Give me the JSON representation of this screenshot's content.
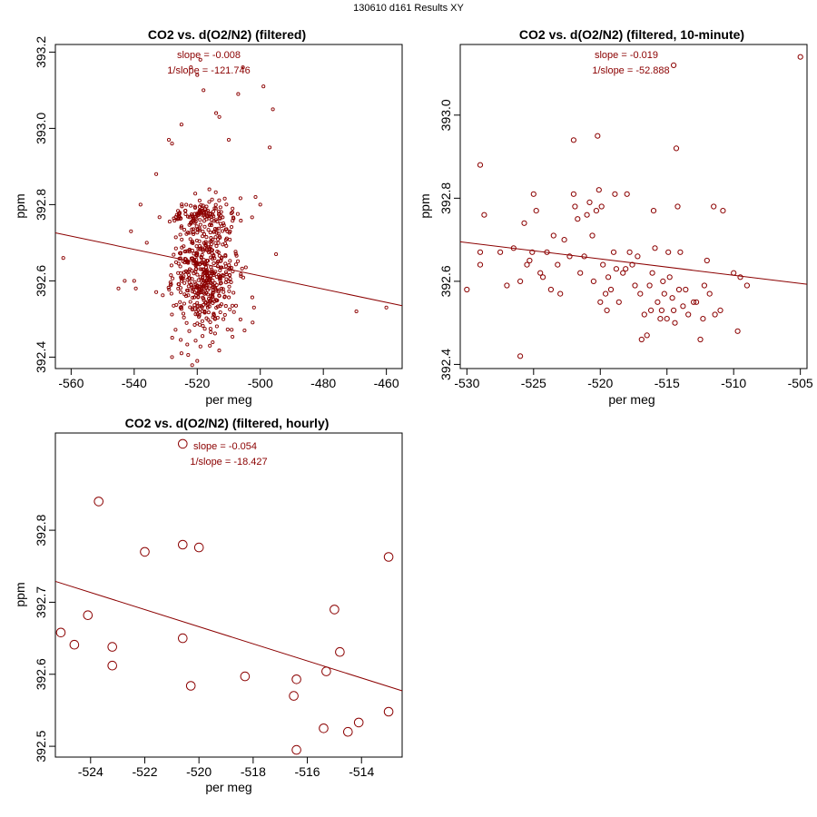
{
  "page_title": "130610   d161   Results XY",
  "colors": {
    "series": "#8b0000",
    "axis": "#000000"
  },
  "chart_data": [
    {
      "type": "scatter",
      "title": "CO2 vs. d(O2/N2) (filtered)",
      "xlabel": "per meg",
      "ylabel": "ppm",
      "xlim": [
        -565,
        -455
      ],
      "ylim": [
        392.37,
        393.22
      ],
      "xticks": [
        -560,
        -540,
        -520,
        -500,
        -480,
        -460
      ],
      "yticks": [
        392.4,
        392.6,
        392.8,
        393.0,
        393.2
      ],
      "ytick_labels": [
        "392.4",
        "392.6",
        "392.8",
        "393.0",
        "393.2"
      ],
      "annotations": [
        "slope = -0.008",
        "1/slope = -121.746"
      ],
      "fit_line": {
        "x": [
          -565,
          -455
        ],
        "y": [
          392.726,
          392.535
        ]
      },
      "point_size": "small",
      "points_note": "approx. 700 points densely clustered around x=-525..-510, y=392.45..392.80",
      "cluster": {
        "n": 620,
        "x_center": -518,
        "x_spread": 5,
        "y_center": 392.62,
        "y_spread": 0.085,
        "seed": 7
      },
      "points": [
        [
          -562.5,
          392.66
        ],
        [
          -541,
          392.73
        ],
        [
          -540,
          392.6
        ],
        [
          -539.5,
          392.58
        ],
        [
          -538,
          392.8
        ],
        [
          -536,
          392.7
        ],
        [
          -533,
          392.88
        ],
        [
          -529,
          392.97
        ],
        [
          -528,
          392.96
        ],
        [
          -525,
          393.01
        ],
        [
          -522,
          393.16
        ],
        [
          -520,
          393.14
        ],
        [
          -519,
          393.18
        ],
        [
          -518,
          393.1
        ],
        [
          -514,
          393.04
        ],
        [
          -513,
          393.03
        ],
        [
          -510,
          392.97
        ],
        [
          -507,
          393.09
        ],
        [
          -505.5,
          393.16
        ],
        [
          -501.5,
          392.82
        ],
        [
          -500,
          392.8
        ],
        [
          -499,
          393.11
        ],
        [
          -497,
          392.95
        ],
        [
          -496,
          393.05
        ],
        [
          -495,
          392.67
        ],
        [
          -469.5,
          392.52
        ],
        [
          -460,
          392.53
        ],
        [
          -528,
          392.4
        ],
        [
          -525,
          392.41
        ],
        [
          -520,
          392.39
        ],
        [
          -516,
          392.43
        ],
        [
          -505,
          392.47
        ],
        [
          -502,
          392.53
        ],
        [
          -545,
          392.58
        ],
        [
          -543,
          392.6
        ]
      ]
    },
    {
      "type": "scatter",
      "title": "CO2 vs. d(O2/N2) (filtered, 10-minute)",
      "xlabel": "per meg",
      "ylabel": "ppm",
      "xlim": [
        -530.5,
        -504.5
      ],
      "ylim": [
        392.39,
        393.17
      ],
      "xticks": [
        -530,
        -525,
        -520,
        -515,
        -510,
        -505
      ],
      "yticks": [
        392.4,
        392.6,
        392.8,
        393.0
      ],
      "ytick_labels": [
        "392.4",
        "392.6",
        "392.8",
        "393.0"
      ],
      "annotations": [
        "slope = -0.019",
        "1/slope = -52.888"
      ],
      "fit_line": {
        "x": [
          -530.5,
          -504.5
        ],
        "y": [
          392.695,
          392.593
        ]
      },
      "point_size": "medium",
      "points": [
        [
          -530,
          392.58
        ],
        [
          -529,
          392.88
        ],
        [
          -528.7,
          392.76
        ],
        [
          -529,
          392.67
        ],
        [
          -529,
          392.64
        ],
        [
          -527.5,
          392.67
        ],
        [
          -527,
          392.59
        ],
        [
          -526.5,
          392.68
        ],
        [
          -526,
          392.42
        ],
        [
          -526,
          392.6
        ],
        [
          -525.7,
          392.74
        ],
        [
          -525.5,
          392.64
        ],
        [
          -525.3,
          392.65
        ],
        [
          -525.1,
          392.67
        ],
        [
          -525,
          392.81
        ],
        [
          -524.8,
          392.77
        ],
        [
          -524.5,
          392.62
        ],
        [
          -524.3,
          392.61
        ],
        [
          -524,
          392.67
        ],
        [
          -523.7,
          392.58
        ],
        [
          -523.5,
          392.71
        ],
        [
          -523.2,
          392.64
        ],
        [
          -523,
          392.57
        ],
        [
          -522.7,
          392.7
        ],
        [
          -522.3,
          392.66
        ],
        [
          -522,
          392.94
        ],
        [
          -522,
          392.81
        ],
        [
          -521.9,
          392.78
        ],
        [
          -521.7,
          392.75
        ],
        [
          -521.5,
          392.62
        ],
        [
          -521.2,
          392.66
        ],
        [
          -521,
          392.76
        ],
        [
          -520.8,
          392.79
        ],
        [
          -520.6,
          392.71
        ],
        [
          -520.5,
          392.6
        ],
        [
          -520.3,
          392.77
        ],
        [
          -520.2,
          392.95
        ],
        [
          -520.1,
          392.82
        ],
        [
          -520,
          392.55
        ],
        [
          -519.9,
          392.78
        ],
        [
          -519.8,
          392.64
        ],
        [
          -519.6,
          392.57
        ],
        [
          -519.5,
          392.53
        ],
        [
          -519.4,
          392.61
        ],
        [
          -519.2,
          392.58
        ],
        [
          -519,
          392.67
        ],
        [
          -518.9,
          392.81
        ],
        [
          -518.8,
          392.63
        ],
        [
          -518.6,
          392.55
        ],
        [
          -518.3,
          392.62
        ],
        [
          -518.1,
          392.63
        ],
        [
          -518,
          392.81
        ],
        [
          -517.8,
          392.67
        ],
        [
          -517.6,
          392.64
        ],
        [
          -517.4,
          392.59
        ],
        [
          -517.2,
          392.66
        ],
        [
          -517,
          392.57
        ],
        [
          -516.9,
          392.46
        ],
        [
          -516.7,
          392.52
        ],
        [
          -516.5,
          392.47
        ],
        [
          -516.3,
          392.59
        ],
        [
          -516.2,
          392.53
        ],
        [
          -516.1,
          392.62
        ],
        [
          -516,
          392.77
        ],
        [
          -515.9,
          392.68
        ],
        [
          -515.7,
          392.55
        ],
        [
          -515.5,
          392.51
        ],
        [
          -515.4,
          392.53
        ],
        [
          -515.3,
          392.6
        ],
        [
          -515.2,
          392.57
        ],
        [
          -515,
          392.51
        ],
        [
          -514.9,
          392.67
        ],
        [
          -514.8,
          392.61
        ],
        [
          -514.6,
          392.56
        ],
        [
          -514.5,
          392.53
        ],
        [
          -514.4,
          392.5
        ],
        [
          -514.3,
          392.92
        ],
        [
          -514.2,
          392.78
        ],
        [
          -514.1,
          392.58
        ],
        [
          -514,
          392.67
        ],
        [
          -513.8,
          392.54
        ],
        [
          -513.6,
          392.58
        ],
        [
          -513.4,
          392.52
        ],
        [
          -513,
          392.55
        ],
        [
          -512.8,
          392.55
        ],
        [
          -512.5,
          392.46
        ],
        [
          -512.3,
          392.51
        ],
        [
          -512.2,
          392.59
        ],
        [
          -512,
          392.65
        ],
        [
          -511.8,
          392.57
        ],
        [
          -511.5,
          392.78
        ],
        [
          -511.4,
          392.52
        ],
        [
          -511,
          392.53
        ],
        [
          -510.8,
          392.77
        ],
        [
          -510,
          392.62
        ],
        [
          -509.7,
          392.48
        ],
        [
          -509.5,
          392.61
        ],
        [
          -509,
          392.59
        ],
        [
          -505,
          393.14
        ],
        [
          -514.5,
          393.12
        ]
      ]
    },
    {
      "type": "scatter",
      "title": "CO2 vs. d(O2/N2) (filtered, hourly)",
      "xlabel": "per meg",
      "ylabel": "ppm",
      "xlim": [
        -525.3,
        -512.5
      ],
      "ylim": [
        392.485,
        392.935
      ],
      "xticks": [
        -524,
        -522,
        -520,
        -518,
        -516,
        -514
      ],
      "yticks": [
        392.5,
        392.6,
        392.7,
        392.8
      ],
      "ytick_labels": [
        "392.5",
        "392.6",
        "392.7",
        "392.8"
      ],
      "annotations": [
        "slope = -0.054",
        "1/slope = -18.427"
      ],
      "fit_line": {
        "x": [
          -525.3,
          -512.5
        ],
        "y": [
          392.729,
          392.577
        ]
      },
      "point_size": "large",
      "points": [
        [
          -520.6,
          392.92
        ],
        [
          -523.7,
          392.84
        ],
        [
          -522,
          392.77
        ],
        [
          -520.6,
          392.78
        ],
        [
          -520,
          392.776
        ],
        [
          -513,
          392.763
        ],
        [
          -515,
          392.69
        ],
        [
          -524.1,
          392.682
        ],
        [
          -525.1,
          392.658
        ],
        [
          -524.6,
          392.641
        ],
        [
          -523.2,
          392.638
        ],
        [
          -520.6,
          392.65
        ],
        [
          -514.8,
          392.631
        ],
        [
          -523.2,
          392.612
        ],
        [
          -520.3,
          392.584
        ],
        [
          -518.3,
          392.597
        ],
        [
          -516.4,
          392.593
        ],
        [
          -515.3,
          392.604
        ],
        [
          -516.5,
          392.57
        ],
        [
          -513,
          392.548
        ],
        [
          -515.4,
          392.525
        ],
        [
          -514.5,
          392.52
        ],
        [
          -514.1,
          392.533
        ],
        [
          -516.4,
          392.495
        ]
      ]
    }
  ]
}
